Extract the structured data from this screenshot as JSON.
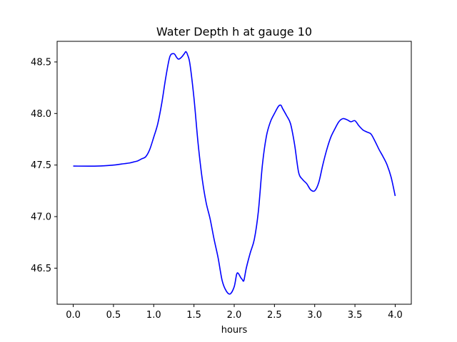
{
  "chart_data": {
    "type": "line",
    "title": "Water Depth h at gauge 10",
    "xlabel": "hours",
    "ylabel": "",
    "xlim": [
      -0.2,
      4.2
    ],
    "ylim": [
      46.15,
      48.7
    ],
    "x_ticks": [
      0.0,
      0.5,
      1.0,
      1.5,
      2.0,
      2.5,
      3.0,
      3.5,
      4.0
    ],
    "x_tick_labels": [
      "0.0",
      "0.5",
      "1.0",
      "1.5",
      "2.0",
      "2.5",
      "3.0",
      "3.5",
      "4.0"
    ],
    "y_ticks": [
      46.5,
      47.0,
      47.5,
      48.0,
      48.5
    ],
    "y_tick_labels": [
      "46.5",
      "47.0",
      "47.5",
      "48.0",
      "48.5"
    ],
    "grid": false,
    "series": [
      {
        "color": "#0000ff",
        "x": [
          0.0,
          0.3,
          0.5,
          0.6,
          0.7,
          0.75,
          0.8,
          0.85,
          0.9,
          0.95,
          1.0,
          1.05,
          1.1,
          1.15,
          1.2,
          1.25,
          1.28,
          1.3,
          1.32,
          1.35,
          1.38,
          1.4,
          1.42,
          1.45,
          1.5,
          1.55,
          1.6,
          1.65,
          1.7,
          1.75,
          1.8,
          1.85,
          1.9,
          1.95,
          2.0,
          2.03,
          2.05,
          2.08,
          2.1,
          2.12,
          2.15,
          2.2,
          2.25,
          2.3,
          2.35,
          2.4,
          2.45,
          2.5,
          2.55,
          2.58,
          2.6,
          2.65,
          2.7,
          2.75,
          2.8,
          2.85,
          2.9,
          2.95,
          3.0,
          3.05,
          3.1,
          3.15,
          3.2,
          3.25,
          3.3,
          3.35,
          3.4,
          3.45,
          3.5,
          3.55,
          3.6,
          3.65,
          3.7,
          3.75,
          3.8,
          3.85,
          3.9,
          3.95,
          4.0
        ],
        "values": [
          47.49,
          47.49,
          47.5,
          47.51,
          47.52,
          47.53,
          47.54,
          47.56,
          47.58,
          47.65,
          47.77,
          47.9,
          48.1,
          48.35,
          48.55,
          48.58,
          48.55,
          48.53,
          48.53,
          48.55,
          48.58,
          48.6,
          48.57,
          48.48,
          48.15,
          47.72,
          47.38,
          47.14,
          46.98,
          46.78,
          46.6,
          46.38,
          46.28,
          46.25,
          46.32,
          46.44,
          46.45,
          46.41,
          46.39,
          46.38,
          46.5,
          46.65,
          46.78,
          47.05,
          47.5,
          47.78,
          47.92,
          48.0,
          48.07,
          48.08,
          48.05,
          47.98,
          47.9,
          47.7,
          47.43,
          47.36,
          47.32,
          47.26,
          47.25,
          47.33,
          47.5,
          47.65,
          47.77,
          47.85,
          47.92,
          47.95,
          47.94,
          47.92,
          47.93,
          47.88,
          47.84,
          47.82,
          47.8,
          47.73,
          47.65,
          47.58,
          47.5,
          47.38,
          47.2
        ]
      }
    ]
  }
}
